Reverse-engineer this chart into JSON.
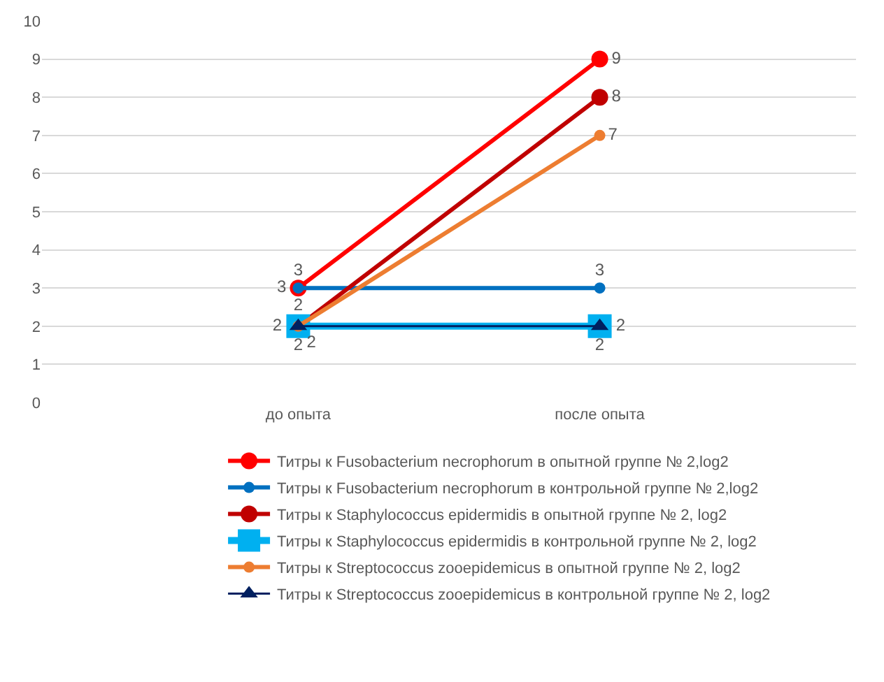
{
  "chart_data": {
    "type": "line",
    "categories": [
      "до опыта",
      "после опыта"
    ],
    "series": [
      {
        "name": "Титры к Fusobacterium necrophorum в опытной группе № 2,log2",
        "color": "#ff0000",
        "marker": "circle",
        "values": [
          3,
          9
        ]
      },
      {
        "name": "Титры к Fusobacterium necrophorum в контрольной группе № 2,log2",
        "color": "#0070c0",
        "marker": "circle",
        "values": [
          3,
          3
        ]
      },
      {
        "name": "Титры к Staphylococcus epidermidis в опытной группе № 2, log2",
        "color": "#c00000",
        "marker": "circle",
        "values": [
          2,
          8
        ]
      },
      {
        "name": "Титры к Staphylococcus epidermidis в контрольной группе № 2, log2",
        "color": "#00b0f0",
        "marker": "square",
        "values": [
          2,
          2
        ]
      },
      {
        "name": "Титры к Streptococcus zooepidemicus в опытной группе № 2, log2",
        "color": "#ed7d31",
        "marker": "circle",
        "values": [
          2,
          7
        ]
      },
      {
        "name": "Титры к Streptococcus zooepidemicus в контрольной группе № 2, log2",
        "color": "#002060",
        "marker": "triangle",
        "values": [
          2,
          2
        ]
      }
    ],
    "ylim": [
      0,
      10
    ],
    "yticks": [
      0,
      1,
      2,
      3,
      4,
      5,
      6,
      7,
      8,
      9,
      10
    ],
    "grid": "y",
    "legend": "bottom",
    "data_labels": true
  }
}
